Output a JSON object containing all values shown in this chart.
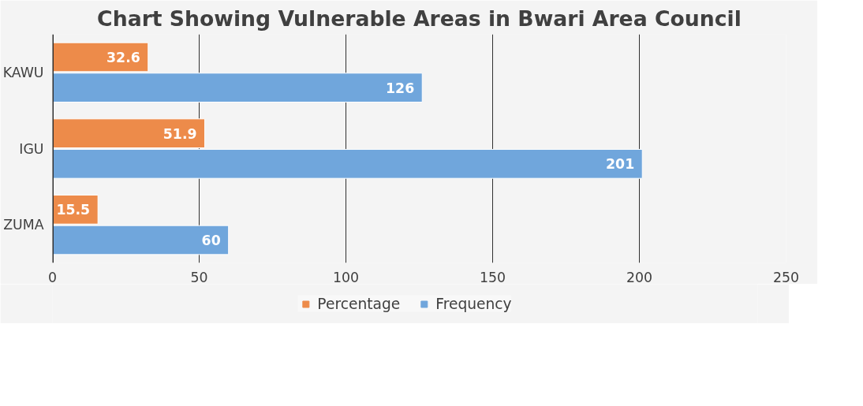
{
  "chart_data": {
    "type": "bar",
    "orientation": "horizontal",
    "title": "Chart Showing Vulnerable Areas in Bwari Area Council",
    "categories": [
      "KAWU",
      "IGU",
      "ZUMA"
    ],
    "series": [
      {
        "name": "Percentage",
        "color": "#ed8b4a",
        "values": [
          32.6,
          51.9,
          15.5
        ]
      },
      {
        "name": "Frequency",
        "color": "#70a6dc",
        "values": [
          126,
          201,
          60
        ]
      }
    ],
    "xlim": [
      0,
      250
    ],
    "xticks": [
      0,
      50,
      100,
      150,
      200,
      250
    ],
    "grid": "x",
    "legend": "bottom",
    "data_labels": true
  }
}
